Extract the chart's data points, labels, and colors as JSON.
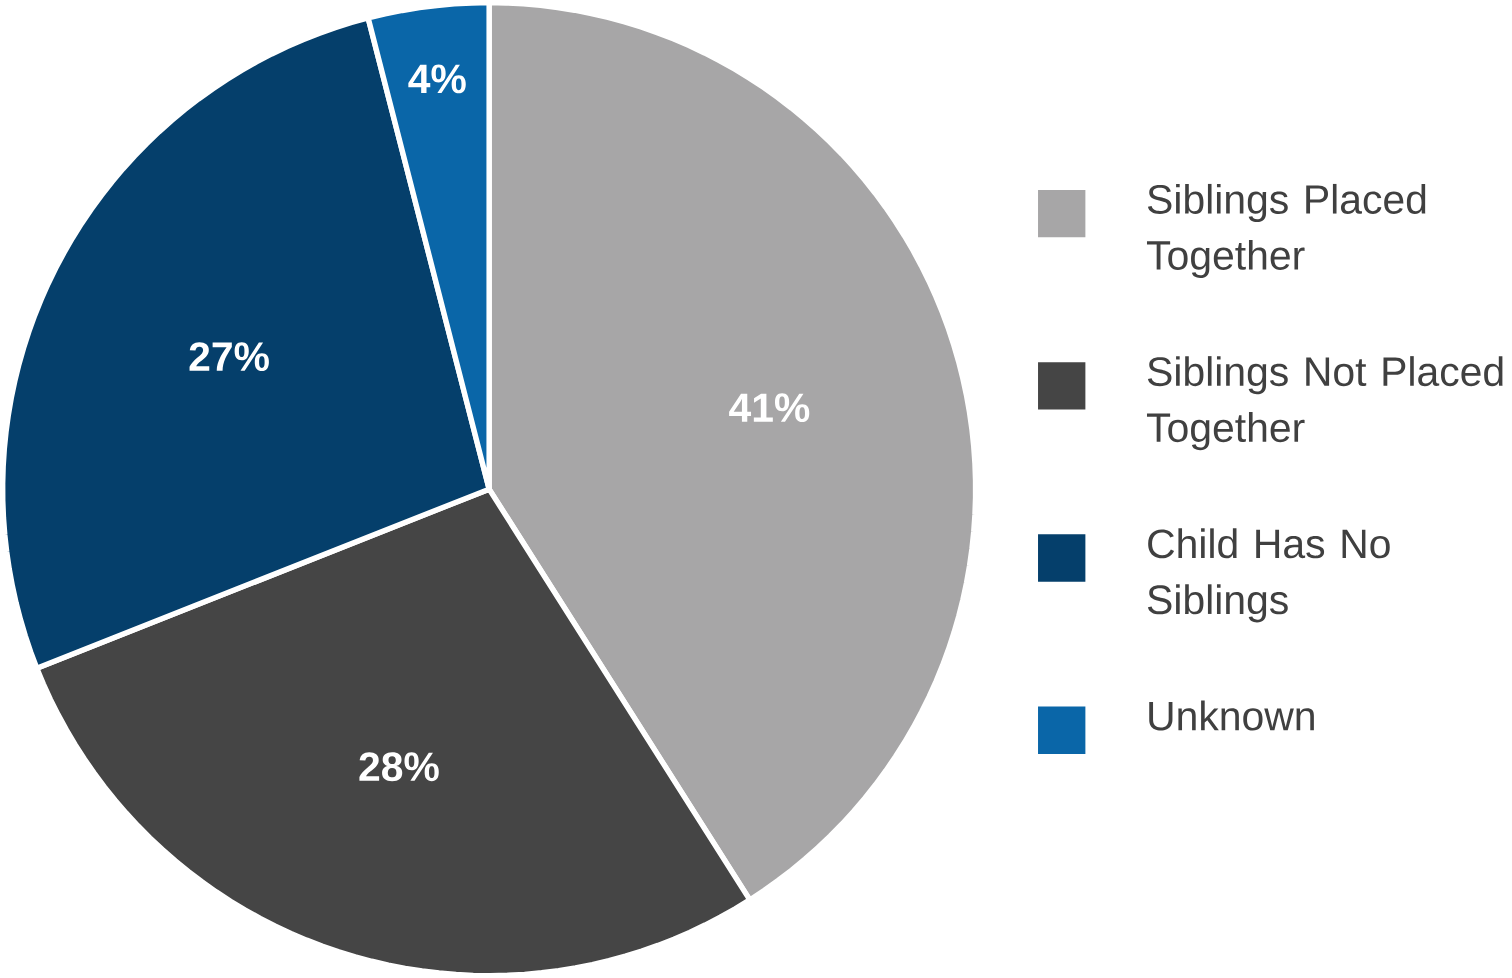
{
  "chart_data": {
    "type": "pie",
    "categories": [
      "Siblings Placed Together",
      "Siblings Not Placed Together",
      "Child Has No Siblings",
      "Unknown"
    ],
    "values": [
      41,
      28,
      27,
      4
    ],
    "colors": [
      "#a7a6a7",
      "#454545",
      "#053f6b",
      "#0a66a8"
    ],
    "value_labels": [
      "41%",
      "28%",
      "27%",
      "4%"
    ],
    "legend": "right"
  }
}
